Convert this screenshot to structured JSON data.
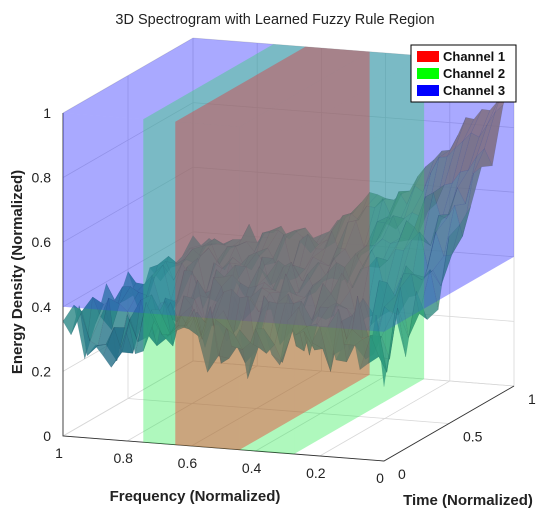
{
  "chart_data": {
    "type": "surface3d",
    "title": "3D Spectrogram with Learned Fuzzy Rule Region",
    "xlabel": "Frequency (Normalized)",
    "ylabel": "Time (Normalized)",
    "zlabel": "Energy Density (Normalized)",
    "xlim": [
      0,
      1
    ],
    "ylim": [
      0,
      1
    ],
    "zlim": [
      0,
      1
    ],
    "xticks": [
      "0",
      "0.2",
      "0.4",
      "0.6",
      "0.8",
      "1"
    ],
    "yticks": [
      "0",
      "0.5",
      "1"
    ],
    "zticks": [
      "0",
      "0.2",
      "0.4",
      "0.6",
      "0.8",
      "1"
    ],
    "grid": true,
    "legend": {
      "placement": "top-right",
      "entries": [
        {
          "name": "Channel 1",
          "color": "#ff0000"
        },
        {
          "name": "Channel 2",
          "color": "#00ff00"
        },
        {
          "name": "Channel 3",
          "color": "#0000ff"
        }
      ]
    },
    "rule_regions": [
      {
        "name": "Channel 1",
        "color": "#ff2a2a",
        "frequency_range": [
          0.45,
          0.65
        ],
        "time_range": [
          0,
          1
        ],
        "energy_range": [
          0,
          1
        ]
      },
      {
        "name": "Channel 2",
        "color": "#33ee55",
        "frequency_range": [
          0.28,
          0.75
        ],
        "time_range": [
          0,
          1
        ],
        "energy_range": [
          0,
          1
        ]
      },
      {
        "name": "Channel 3",
        "color": "#3a3aff",
        "frequency_range": [
          0,
          1
        ],
        "time_range": [
          0,
          1
        ],
        "energy_range": [
          0.4,
          1
        ]
      }
    ],
    "surface": {
      "frequency_points": 40,
      "time_points": 12,
      "energy_trend_at_time_1": [
        {
          "frequency": 0.0,
          "energy": 0.95
        },
        {
          "frequency": 0.3,
          "energy": 0.62
        },
        {
          "frequency": 0.6,
          "energy": 0.45
        },
        {
          "frequency": 1.0,
          "energy": 0.38
        }
      ],
      "energy_trend_at_time_0": [
        {
          "frequency": 0.0,
          "energy": 0.35
        },
        {
          "frequency": 1.0,
          "energy": 0.3
        }
      ],
      "colormap": [
        "#1f4f8a",
        "#2e8a8a",
        "#4f9a6a",
        "#8a7a40",
        "#b08850"
      ]
    }
  }
}
